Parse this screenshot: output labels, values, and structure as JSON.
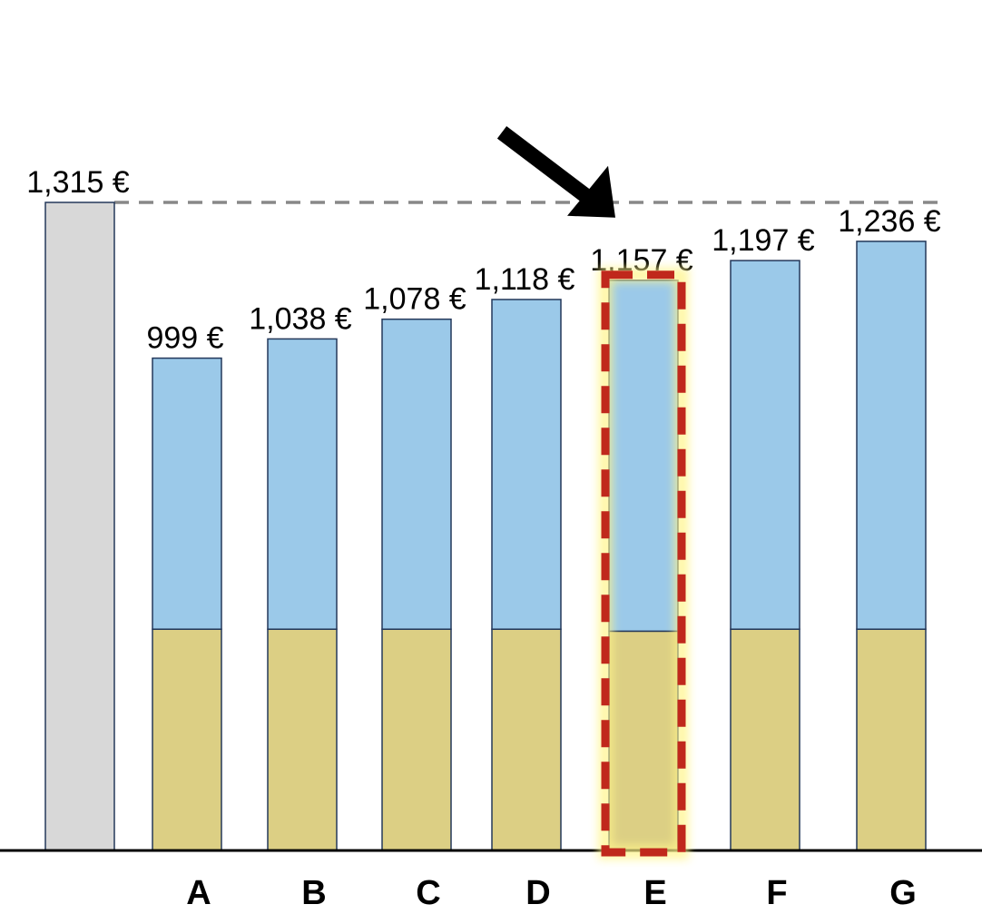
{
  "chart_data": {
    "type": "bar",
    "title": "",
    "xlabel": "",
    "ylabel": "",
    "ylim": [
      0,
      1315
    ],
    "grid": false,
    "legend": "none",
    "stacked": true,
    "categories": [
      "",
      "A",
      "B",
      "C",
      "D",
      "E",
      "F",
      "G"
    ],
    "totals": [
      1315,
      999,
      1038,
      1078,
      1118,
      1157,
      1197,
      1236
    ],
    "value_labels": [
      "1,315 €",
      "999 €",
      "1,038 €",
      "1,078 €",
      "1,118 €",
      "1,157 €",
      "1,197 €",
      "1,236 €"
    ],
    "series": [
      {
        "values": [
          0,
          449,
          449,
          449,
          449,
          445,
          449,
          449
        ],
        "color": "#dccf84"
      },
      {
        "values": [
          0,
          550,
          589,
          629,
          669,
          712,
          748,
          787
        ],
        "color": "#9bc9e9"
      },
      {
        "values": [
          1315,
          0,
          0,
          0,
          0,
          0,
          0,
          0
        ],
        "color": "#d8d8d8"
      }
    ],
    "reference_line": {
      "value": 1315,
      "style": "dashed",
      "color": "#888888"
    },
    "highlight": {
      "category": "E",
      "style": "dashed-red-box-with-arrow",
      "color": "#c0281c"
    },
    "colors": {
      "stroke": "#24385a",
      "axis": "#000000",
      "highlight_glow": "#fff58a"
    }
  }
}
